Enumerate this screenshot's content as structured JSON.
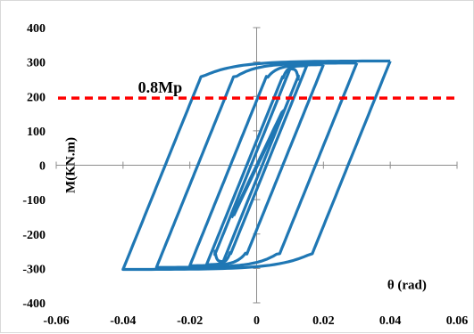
{
  "chart_data": {
    "type": "line",
    "title": "",
    "xlabel": "θ (rad)",
    "ylabel": "M(KN.m)",
    "xlim": [
      -0.06,
      0.06
    ],
    "ylim": [
      -400,
      400
    ],
    "x_ticks": [
      "-0.06",
      "-0.04",
      "-0.02",
      "0",
      "0.02",
      "0.04",
      "0.06"
    ],
    "y_ticks": [
      "400",
      "300",
      "200",
      "100",
      "0",
      "-100",
      "-200",
      "-300",
      "-400"
    ],
    "grid": false,
    "legend": "none",
    "series": [
      {
        "color": "#1f77b4",
        "loops": [
          {
            "amplitude": 0.0075,
            "peak_moment": 150,
            "post_yield_moment": 150
          },
          {
            "amplitude": 0.01,
            "peak_moment": 280,
            "post_yield_moment": 270
          },
          {
            "amplitude": 0.015,
            "peak_moment": 289,
            "post_yield_moment": 273
          },
          {
            "amplitude": 0.02,
            "peak_moment": 292,
            "post_yield_moment": 275
          },
          {
            "amplitude": 0.03,
            "peak_moment": 297,
            "post_yield_moment": 277
          },
          {
            "amplitude": 0.04,
            "peak_moment": 303,
            "post_yield_moment": 280
          }
        ]
      }
    ],
    "reference_line": {
      "label": "0.8Mp",
      "y": 195,
      "color": "#ff0000",
      "style": "dashed"
    }
  }
}
